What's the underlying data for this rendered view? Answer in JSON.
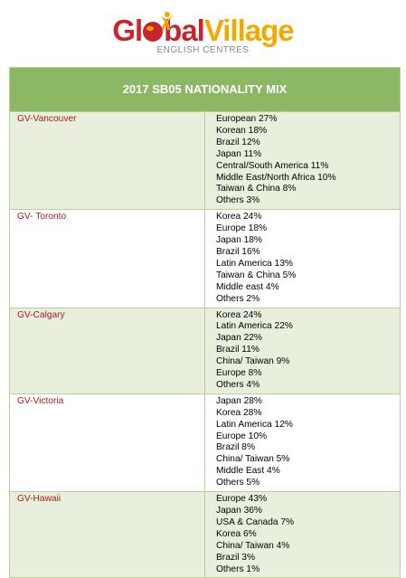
{
  "brand": {
    "word1": "Gl",
    "word1b": "bal",
    "word2": "Village",
    "subtitle": "ENGLISH CENTRES"
  },
  "table": {
    "title": "2017 SB05 NATIONALITY MIX",
    "rows": [
      {
        "location": "GV-Vancouver",
        "items": [
          "European 27%",
          "Korean 18%",
          "Brazil 12%",
          "Japan 11%",
          "Central/South America 11%",
          "Middle East/North Africa 10%",
          "Taiwan & China 8%",
          "Others 3%"
        ]
      },
      {
        "location": "GV- Toronto",
        "items": [
          "Korea 24%",
          "Europe 18%",
          "Japan 18%",
          "Brazil 16%",
          "Latin America 13%",
          "Taiwan & China 5%",
          "Middle east 4%",
          "Others 2%"
        ]
      },
      {
        "location": "GV-Calgary",
        "items": [
          "Korea 24%",
          "Latin America 22%",
          "Japan 22%",
          "Brazil 11%",
          "China/ Taiwan 9%",
          "Europe 8%",
          "Others 4%"
        ]
      },
      {
        "location": "GV-Victoria",
        "items": [
          "Japan 28%",
          "Korea 28%",
          "Latin America 12%",
          "Europe 10%",
          "Brazil 8%",
          "China/ Taiwan 5%",
          "Middle East 4%",
          "Others 5%"
        ]
      },
      {
        "location": "GV-Hawaii",
        "items": [
          "Europe 43%",
          "Japan 36%",
          "USA & Canada 7%",
          "Korea 6%",
          "China/ Taiwan 4%",
          "Brazil 3%",
          "Others 1%"
        ]
      }
    ]
  },
  "colors": {
    "header": "#8cb865",
    "row_alt": "#e8f0dd",
    "location_text": "#a51c1c",
    "brand_red": "#c9252c",
    "brand_yellow": "#f2a900"
  }
}
